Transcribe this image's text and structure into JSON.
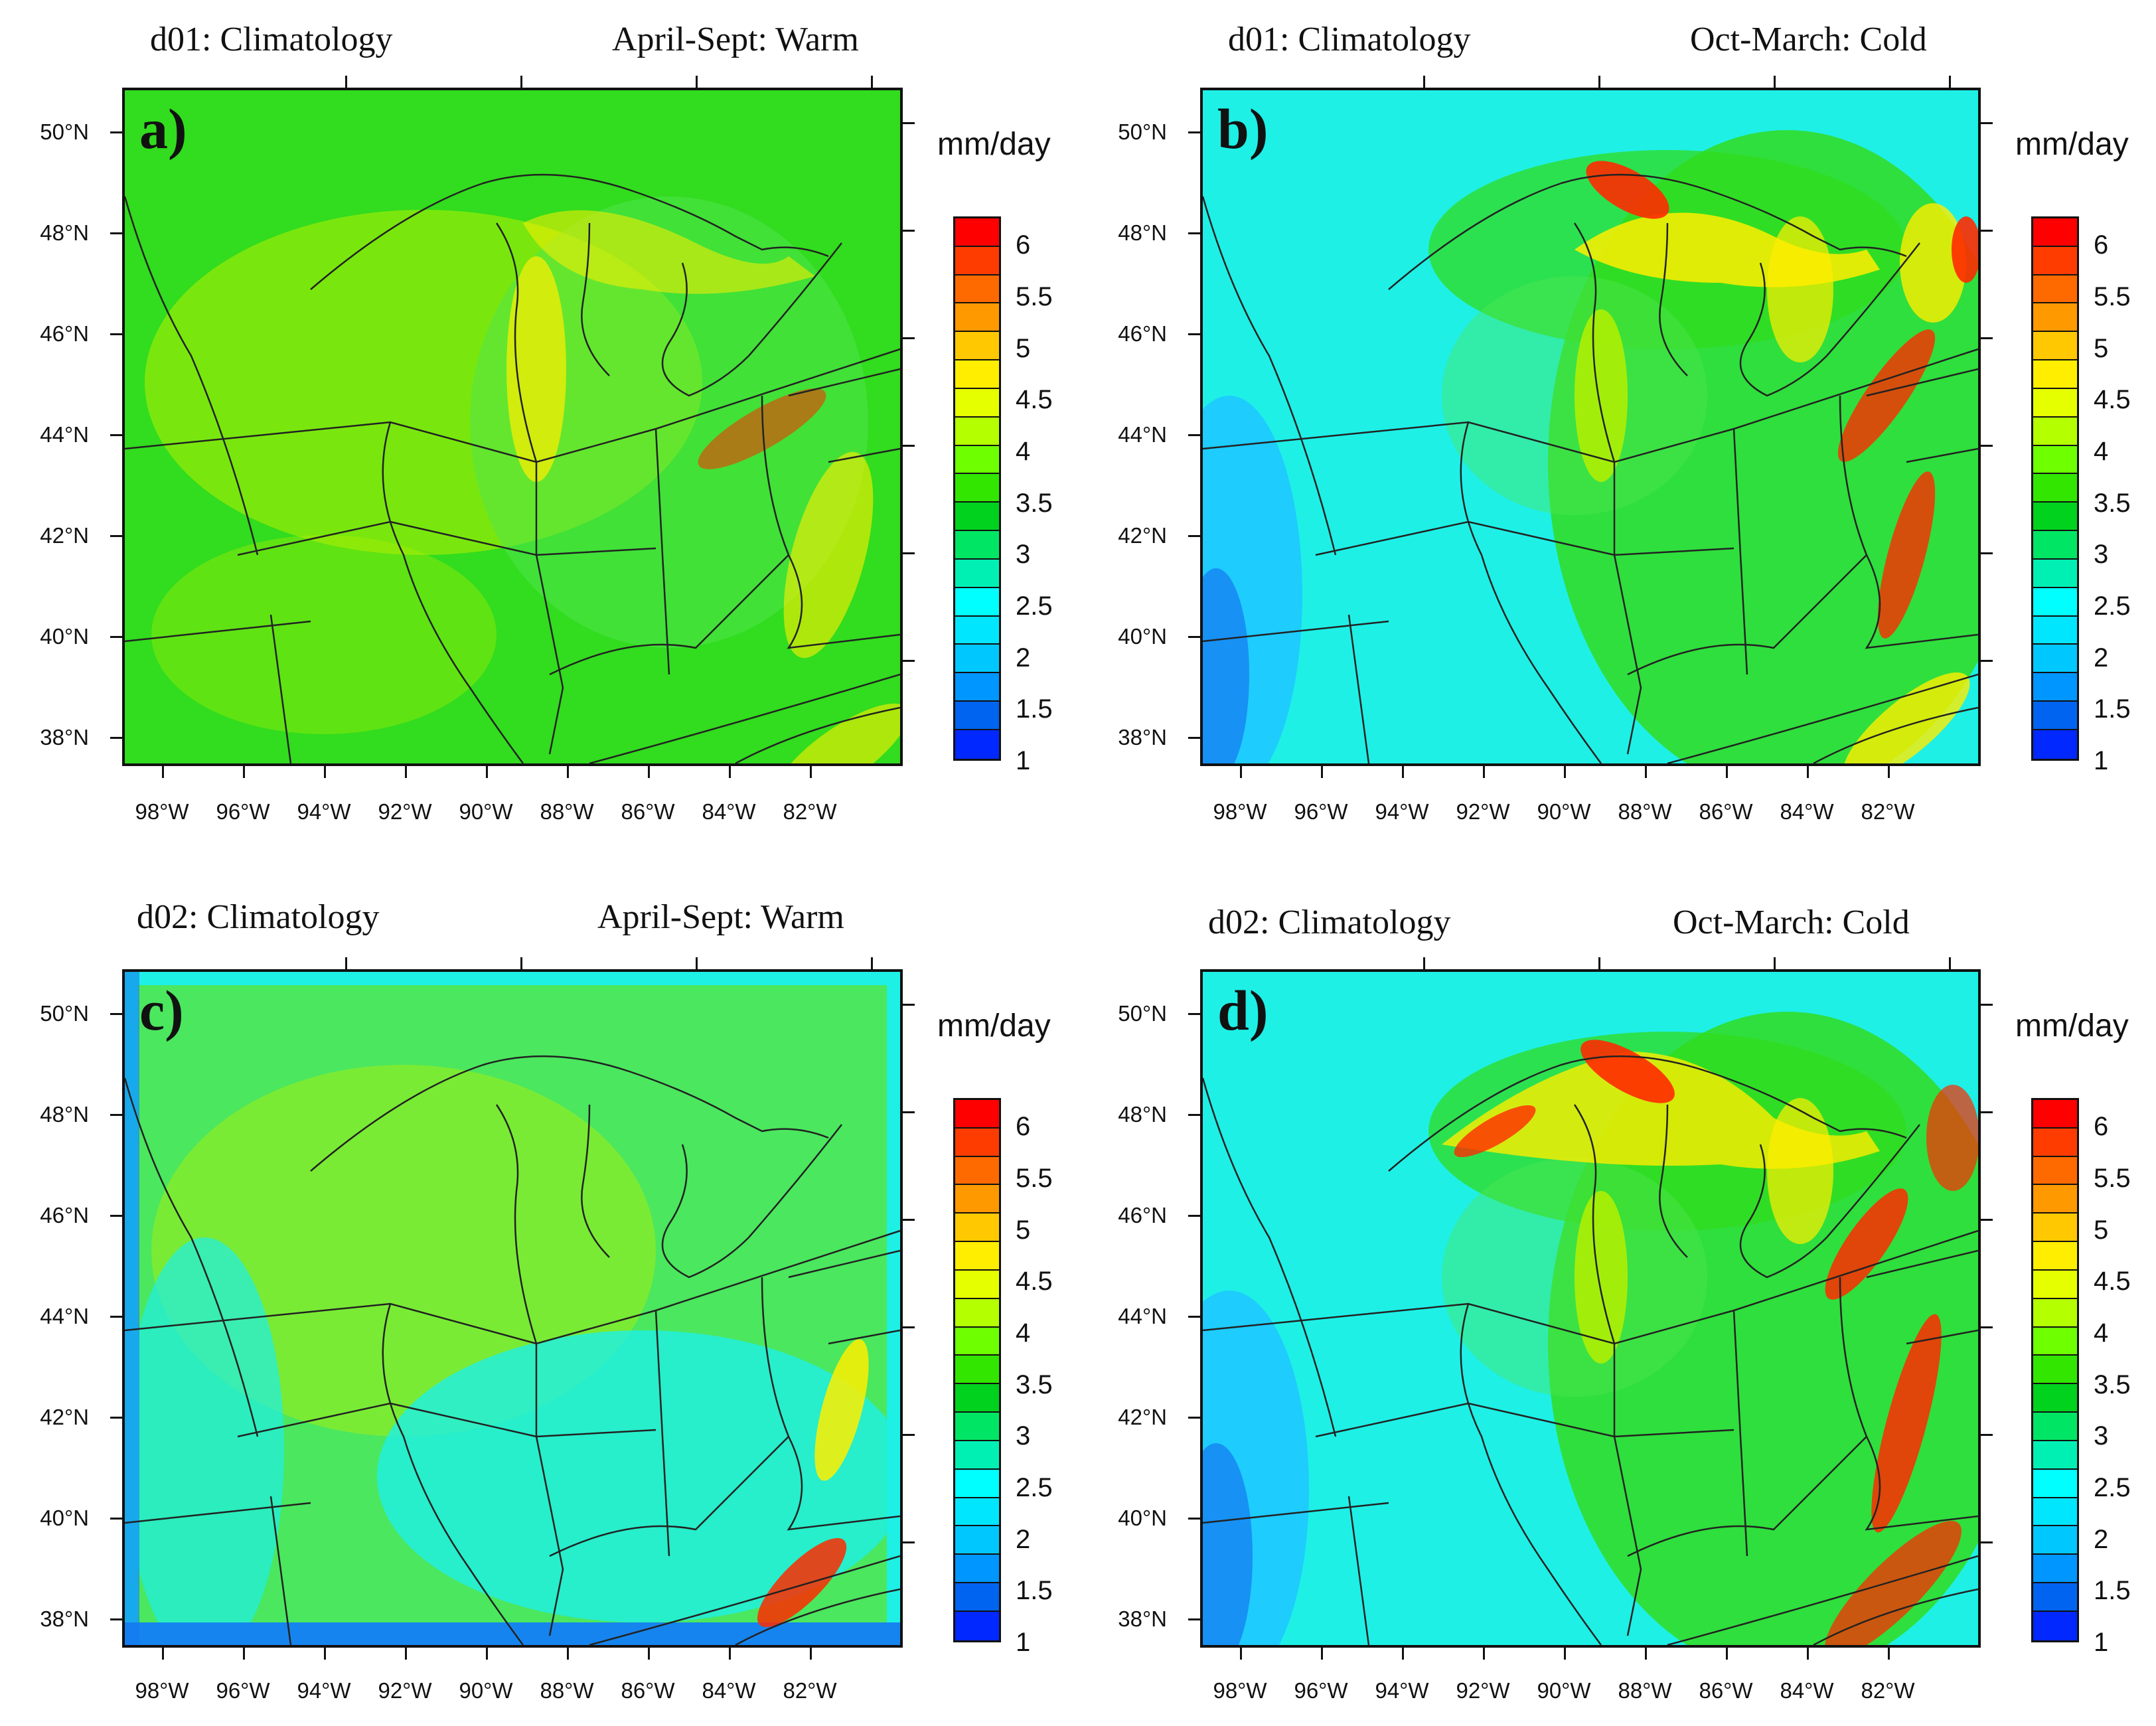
{
  "panels": [
    {
      "id": "a",
      "label": "a)",
      "domain_title": "d01: Climatology",
      "season_title": "April-Sept: Warm"
    },
    {
      "id": "b",
      "label": "b)",
      "domain_title": "d01: Climatology",
      "season_title": "Oct-March: Cold"
    },
    {
      "id": "c",
      "label": "c)",
      "domain_title": "d02: Climatology",
      "season_title": "April-Sept: Warm"
    },
    {
      "id": "d",
      "label": "d)",
      "domain_title": "d02: Climatology",
      "season_title": "Oct-March: Cold"
    }
  ],
  "lat_labels": [
    "50°N",
    "48°N",
    "46°N",
    "44°N",
    "42°N",
    "40°N",
    "38°N"
  ],
  "lon_labels": [
    "98°W",
    "96°W",
    "94°W",
    "92°W",
    "90°W",
    "88°W",
    "86°W",
    "84°W",
    "82°W"
  ],
  "colorbar": {
    "unit": "mm/day",
    "tick_labels": [
      "6",
      "5.5",
      "5",
      "4.5",
      "4",
      "3.5",
      "3",
      "2.5",
      "2",
      "1.5",
      "1"
    ],
    "colors_top_to_bottom": [
      "#ff0000",
      "#ff3c00",
      "#ff6a00",
      "#ff9900",
      "#ffc800",
      "#ffee00",
      "#e6ff00",
      "#b4ff00",
      "#6eff00",
      "#32e600",
      "#00d21e",
      "#00e664",
      "#00f0b4",
      "#00ffff",
      "#00e6ff",
      "#00c8ff",
      "#0096ff",
      "#0064f0",
      "#0028ff"
    ]
  },
  "colors": {
    "high": "#ff2a00",
    "yellow": "#ffee00",
    "yellow_green": "#b4f000",
    "green": "#32dc1e",
    "light_green": "#50e650",
    "cyan": "#1ef0e6",
    "light_blue": "#1ec8ff",
    "blue": "#1478f0",
    "dark_blue": "#0a28ff"
  }
}
